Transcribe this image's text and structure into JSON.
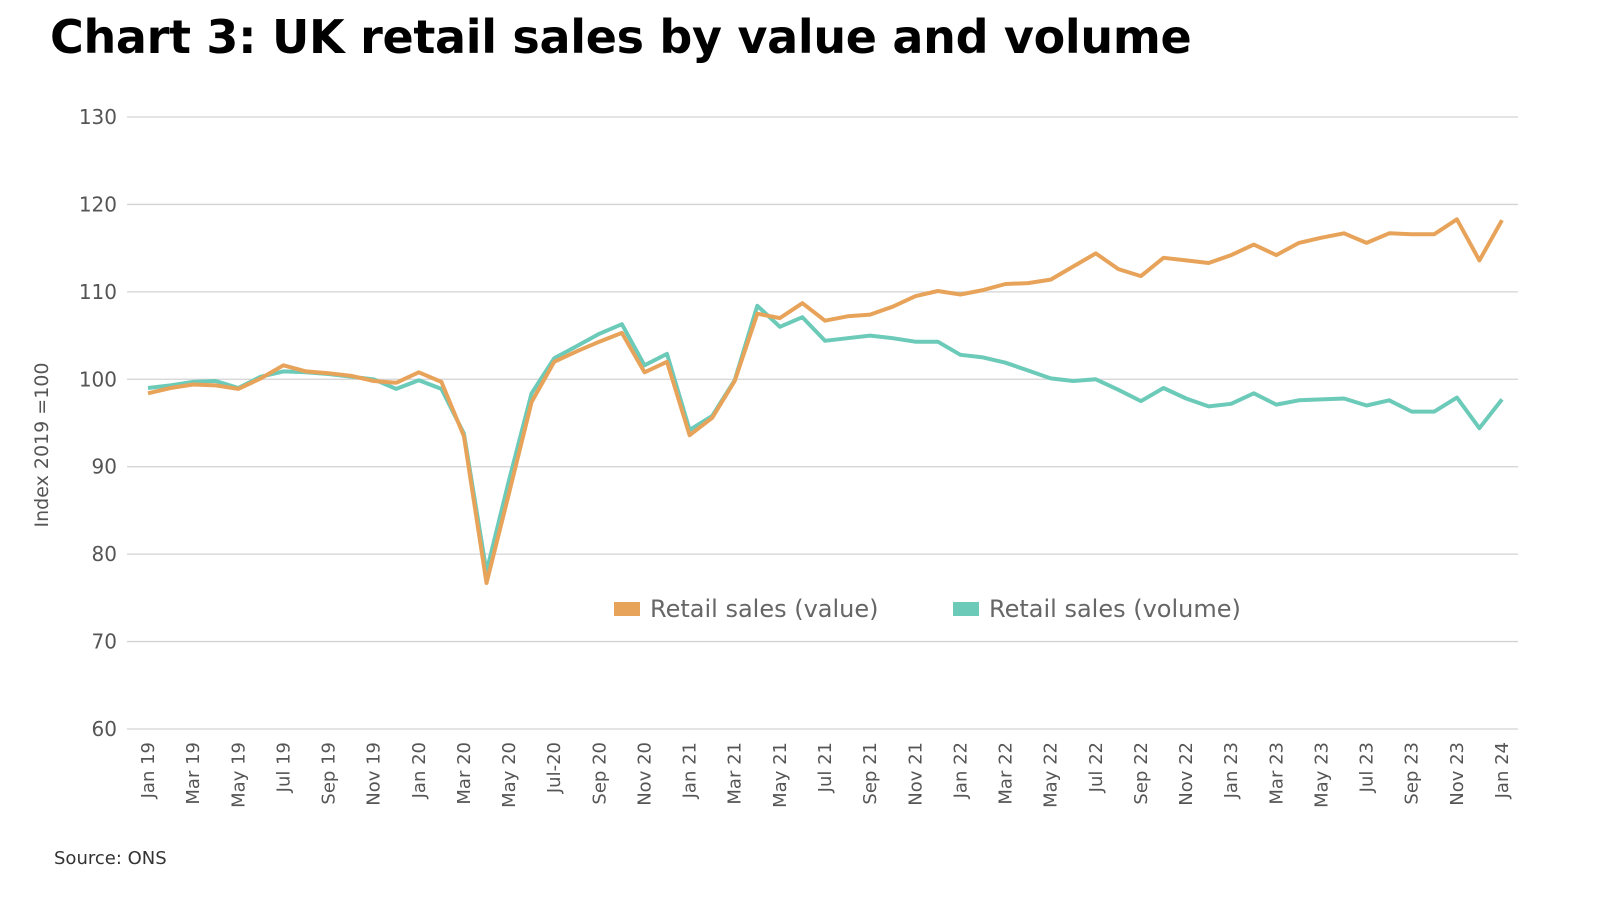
{
  "header": {
    "title": "Chart 3: UK retail sales by value and volume"
  },
  "footer": {
    "source": "Source: ONS"
  },
  "colors": {
    "value": "#e8a35a",
    "volume": "#6ccab9",
    "grid": "#d3d3d3"
  },
  "chart_data": {
    "type": "line",
    "title": "Chart 3: UK retail sales by value and volume",
    "xlabel": "",
    "ylabel": "Index 2019 =100",
    "ylim": [
      60,
      130
    ],
    "yticks": [
      60,
      70,
      80,
      90,
      100,
      110,
      120,
      130
    ],
    "grid": true,
    "legend_position": "bottom-center-inside",
    "x": [
      "Jan 19",
      "Feb 19",
      "Mar 19",
      "Apr 19",
      "May 19",
      "Jun 19",
      "Jul 19",
      "Aug 19",
      "Sep 19",
      "Oct 19",
      "Nov 19",
      "Dec 19",
      "Jan 20",
      "Feb 20",
      "Mar 20",
      "Apr 20",
      "May 20",
      "Jun 20",
      "Jul 20",
      "Aug 20",
      "Sep 20",
      "Oct 20",
      "Nov 20",
      "Dec 20",
      "Jan 21",
      "Feb 21",
      "Mar 21",
      "Apr 21",
      "May 21",
      "Jun 21",
      "Jul 21",
      "Aug 21",
      "Sep 21",
      "Oct 21",
      "Nov 21",
      "Dec 21",
      "Jan 22",
      "Feb 22",
      "Mar 22",
      "Apr 22",
      "May 22",
      "Jun 22",
      "Jul 22",
      "Aug 22",
      "Sep 22",
      "Oct 22",
      "Nov 22",
      "Dec 22",
      "Jan 23",
      "Feb 23",
      "Mar 23",
      "Apr 23",
      "May 23",
      "Jun 23",
      "Jul 23",
      "Aug 23",
      "Sep 23",
      "Oct 23",
      "Nov 23",
      "Dec 23",
      "Jan 24"
    ],
    "xtick_labels": [
      "Jan 19",
      "Mar 19",
      "May 19",
      "Jul 19",
      "Sep 19",
      "Nov 19",
      "Jan 20",
      "Mar 20",
      "May 20",
      "Jul-20",
      "Sep 20",
      "Nov 20",
      "Jan 21",
      "Mar 21",
      "May 21",
      "Jul 21",
      "Sep 21",
      "Nov 21",
      "Jan 22",
      "Mar 22",
      "May 22",
      "Jul 22",
      "Sep 22",
      "Nov 22",
      "Jan 23",
      "Mar 23",
      "May 23",
      "Jul 23",
      "Sep 23",
      "Nov 23",
      "Jan 24"
    ],
    "series": [
      {
        "name": "Retail sales (value)",
        "key": "value",
        "values": [
          98.4,
          99.0,
          99.4,
          99.3,
          98.9,
          100.1,
          101.6,
          100.9,
          100.7,
          100.4,
          99.8,
          99.6,
          100.8,
          99.7,
          93.5,
          76.7,
          87.0,
          97.4,
          102.0,
          103.2,
          104.3,
          105.3,
          100.8,
          102.0,
          93.6,
          95.6,
          99.8,
          107.5,
          107.0,
          108.7,
          106.7,
          107.2,
          107.4,
          108.3,
          109.5,
          110.1,
          109.7,
          110.2,
          110.9,
          111.0,
          111.4,
          112.9,
          114.4,
          112.6,
          111.8,
          113.9,
          113.6,
          113.3,
          114.2,
          115.4,
          114.2,
          115.6,
          116.2,
          116.7,
          115.6,
          116.7,
          116.6,
          116.6,
          118.3,
          113.6,
          118.2
        ]
      },
      {
        "name": "Retail sales (volume)",
        "key": "volume",
        "values": [
          99.0,
          99.3,
          99.7,
          99.8,
          99.0,
          100.3,
          100.9,
          100.8,
          100.6,
          100.3,
          100.0,
          98.9,
          99.9,
          98.9,
          93.8,
          78.0,
          88.5,
          98.4,
          102.4,
          103.8,
          105.2,
          106.3,
          101.6,
          102.9,
          94.2,
          95.8,
          99.9,
          108.4,
          106.0,
          107.1,
          104.4,
          104.7,
          105.0,
          104.7,
          104.3,
          104.3,
          102.8,
          102.5,
          101.9,
          101.0,
          100.1,
          99.8,
          100.0,
          98.8,
          97.5,
          99.0,
          97.8,
          96.9,
          97.2,
          98.4,
          97.1,
          97.6,
          97.7,
          97.8,
          97.0,
          97.6,
          96.3,
          96.3,
          97.9,
          94.4,
          97.7
        ]
      }
    ]
  }
}
